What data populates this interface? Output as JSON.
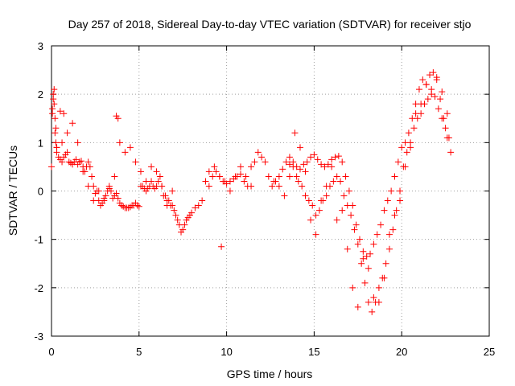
{
  "chart_data": {
    "type": "scatter",
    "title": "Day 257 of 2018, Sidereal Day-to-day VTEC variation (SDTVAR) for receiver stjo",
    "xlabel": "GPS time / hours",
    "ylabel": "SDTVAR / TECUs",
    "xlim": [
      0,
      25
    ],
    "ylim": [
      -3,
      3
    ],
    "xticks": [
      0,
      5,
      10,
      15,
      20,
      25
    ],
    "yticks": [
      -3,
      -2,
      -1,
      0,
      1,
      2,
      3
    ],
    "grid": true,
    "marker": "+",
    "color": "#ff0000",
    "series": [
      {
        "name": "SDTVAR",
        "x": [
          0.0,
          0.05,
          0.1,
          0.15,
          0.2,
          0.25,
          0.3,
          0.4,
          0.5,
          0.6,
          0.7,
          0.8,
          0.9,
          1.0,
          1.1,
          1.2,
          1.3,
          1.4,
          1.5,
          1.6,
          1.7,
          1.8,
          1.9,
          2.0,
          2.1,
          2.2,
          2.3,
          2.4,
          2.5,
          2.6,
          2.7,
          2.8,
          2.9,
          3.0,
          3.1,
          3.2,
          3.3,
          3.4,
          3.5,
          3.6,
          3.7,
          3.8,
          3.9,
          4.0,
          4.1,
          4.2,
          4.3,
          4.4,
          4.5,
          4.6,
          4.7,
          4.8,
          4.9,
          5.0,
          5.1,
          5.2,
          5.3,
          5.4,
          5.5,
          5.6,
          5.7,
          5.8,
          5.9,
          6.0,
          6.1,
          6.2,
          6.3,
          6.4,
          6.5,
          6.6,
          6.7,
          6.8,
          6.9,
          7.0,
          7.1,
          7.2,
          7.3,
          7.4,
          7.5,
          7.6,
          7.7,
          7.8,
          7.9,
          8.0,
          8.2,
          8.4,
          8.6,
          8.8,
          9.0,
          9.2,
          9.4,
          9.6,
          9.8,
          10.0,
          10.2,
          10.4,
          10.6,
          10.8,
          11.0,
          11.2,
          11.4,
          11.6,
          11.8,
          12.0,
          12.2,
          12.4,
          12.6,
          12.8,
          13.0,
          13.2,
          13.4,
          13.6,
          13.8,
          14.0,
          14.2,
          14.4,
          14.6,
          14.8,
          15.0,
          15.2,
          15.4,
          15.6,
          15.8,
          16.0,
          16.2,
          16.4,
          16.6,
          16.8,
          17.0,
          17.2,
          17.4,
          17.6,
          17.8,
          18.0,
          18.2,
          18.4,
          18.6,
          18.8,
          19.0,
          19.2,
          19.4,
          19.6,
          19.8,
          20.0,
          20.2,
          20.4,
          20.6,
          20.8,
          21.0,
          21.2,
          21.4,
          21.6,
          21.8,
          22.0,
          22.2,
          22.4,
          22.6,
          22.8,
          0.05,
          0.1,
          0.15,
          0.2,
          0.25,
          0.3,
          0.5,
          0.7,
          3.7,
          3.8,
          6.5,
          9.7,
          13.6,
          13.8,
          14.0,
          14.1,
          14.3,
          14.5,
          14.7,
          14.9,
          15.1,
          15.3,
          15.5,
          15.7,
          15.9,
          16.1,
          16.3,
          16.5,
          16.7,
          16.9,
          17.1,
          17.3,
          17.5,
          17.7,
          17.9,
          18.1,
          18.3,
          18.5,
          18.7,
          18.9,
          19.1,
          19.3,
          19.5,
          19.7,
          19.9,
          20.1,
          20.3,
          20.5,
          20.7,
          20.9,
          21.1,
          21.3,
          21.5,
          21.7,
          21.9,
          22.1,
          22.3,
          22.5,
          22.7,
          0.3,
          0.6,
          0.9,
          1.2,
          1.5,
          1.8,
          2.1,
          2.4,
          2.7,
          3.0,
          3.3,
          3.6,
          3.9,
          4.2,
          4.5,
          4.8,
          5.1,
          5.4,
          5.7,
          6.0,
          6.3,
          6.6,
          6.9,
          9.0,
          9.3,
          9.6,
          9.9,
          10.2,
          10.5,
          10.8,
          11.1,
          11.4,
          12.7,
          13.0,
          13.3,
          13.6,
          13.9,
          14.2,
          14.5,
          14.8,
          15.1,
          15.4,
          15.7,
          16.0,
          16.3,
          16.6,
          16.9,
          17.2,
          17.5,
          17.8,
          18.1,
          18.4,
          18.7,
          19.0,
          19.3,
          19.6,
          19.9,
          20.2,
          20.5,
          20.8,
          21.1,
          21.4,
          21.7,
          22.0,
          22.3,
          22.6
        ],
        "y": [
          0.5,
          1.6,
          2.0,
          1.8,
          1.5,
          1.3,
          0.9,
          0.7,
          0.65,
          0.6,
          0.7,
          0.75,
          0.8,
          0.6,
          0.58,
          0.55,
          0.6,
          0.65,
          0.55,
          0.6,
          0.62,
          0.5,
          0.4,
          0.5,
          0.6,
          0.5,
          0.3,
          0.1,
          -0.05,
          0.0,
          -0.2,
          -0.3,
          -0.25,
          -0.15,
          -0.1,
          0.0,
          0.05,
          0.0,
          -0.15,
          -0.1,
          -0.05,
          -0.15,
          -0.25,
          -0.3,
          -0.32,
          -0.35,
          -0.35,
          -0.35,
          -0.33,
          -0.3,
          -0.3,
          -0.25,
          -0.3,
          -0.32,
          0.1,
          0.1,
          0.05,
          0.0,
          0.05,
          0.1,
          0.2,
          0.1,
          0.05,
          0.1,
          0.2,
          0.3,
          0.1,
          -0.1,
          -0.1,
          -0.2,
          -0.2,
          -0.3,
          -0.3,
          -0.4,
          -0.5,
          -0.6,
          -0.7,
          -0.85,
          -0.8,
          -0.7,
          -0.6,
          -0.55,
          -0.5,
          -0.45,
          -0.35,
          -0.3,
          -0.2,
          0.2,
          0.1,
          0.3,
          0.4,
          0.3,
          0.2,
          0.15,
          0.2,
          0.25,
          0.3,
          0.35,
          0.2,
          0.1,
          0.5,
          0.6,
          0.8,
          0.7,
          0.6,
          0.3,
          0.1,
          0.2,
          0.3,
          0.45,
          0.6,
          0.55,
          0.6,
          0.5,
          0.45,
          0.55,
          0.6,
          0.7,
          0.75,
          0.65,
          0.55,
          0.5,
          0.55,
          0.65,
          0.7,
          0.72,
          0.6,
          0.3,
          0.0,
          -0.3,
          -0.7,
          -1.0,
          -1.25,
          -1.35,
          -1.3,
          -1.1,
          -0.9,
          -0.7,
          -0.4,
          -0.2,
          0.0,
          0.3,
          0.6,
          0.9,
          1.0,
          1.2,
          1.5,
          1.8,
          2.1,
          2.3,
          2.2,
          2.4,
          2.45,
          2.3,
          1.9,
          1.5,
          1.1,
          0.8,
          1.7,
          1.9,
          2.1,
          1.2,
          1.0,
          0.9,
          1.65,
          1.6,
          1.55,
          1.5,
          -0.1,
          -1.15,
          0.7,
          0.5,
          0.3,
          0.2,
          0.1,
          -0.1,
          -0.2,
          -0.3,
          -0.5,
          -0.4,
          -0.2,
          -0.1,
          0.1,
          0.2,
          0.3,
          0.2,
          -0.1,
          -0.3,
          -0.5,
          -0.8,
          -1.1,
          -1.5,
          -1.9,
          -2.3,
          -2.5,
          -2.3,
          -2.0,
          -1.8,
          -1.5,
          -1.2,
          -0.8,
          -0.4,
          0.0,
          0.5,
          0.8,
          1.0,
          1.3,
          1.5,
          1.6,
          1.8,
          1.9,
          2.0,
          1.95,
          1.7,
          1.5,
          1.3,
          1.1,
          0.8,
          1.0,
          1.2,
          1.4,
          1.0,
          0.4,
          0.1,
          -0.2,
          0.0,
          -0.2,
          0.1,
          0.3,
          1.0,
          0.8,
          0.9,
          0.6,
          0.4,
          0.2,
          0.5,
          0.4,
          0.1,
          -0.3,
          0.0,
          0.4,
          0.5,
          0.3,
          0.2,
          0.0,
          0.3,
          0.5,
          0.3,
          0.1,
          0.2,
          0.1,
          -0.1,
          0.3,
          1.2,
          0.9,
          0.4,
          -0.6,
          -0.9,
          -0.2,
          0.1,
          0.5,
          -0.6,
          -0.4,
          -1.2,
          -2.0,
          -2.4,
          -1.4,
          -1.6,
          -2.2,
          -2.3,
          -1.8,
          -0.9,
          -0.5,
          -0.2,
          0.5,
          0.9,
          1.6,
          1.8,
          2.2,
          2.1,
          2.35,
          2.05,
          1.6
        ]
      }
    ]
  }
}
